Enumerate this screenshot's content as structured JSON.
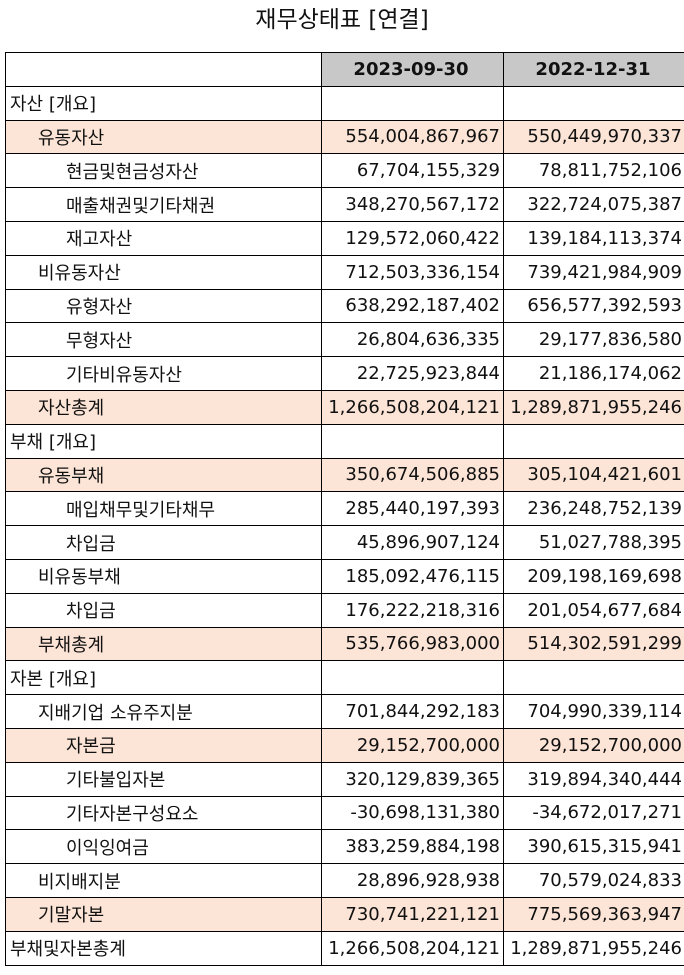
{
  "title": "재무상태표 [연결]",
  "columns": [
    "2023-09-30",
    "2022-12-31"
  ],
  "rows": [
    {
      "label": "자산 [개요]",
      "indent": 0,
      "hl": false,
      "v1": "",
      "v2": ""
    },
    {
      "label": "유동자산",
      "indent": 1,
      "hl": true,
      "v1": "554,004,867,967",
      "v2": "550,449,970,337"
    },
    {
      "label": "현금및현금성자산",
      "indent": 2,
      "hl": false,
      "v1": "67,704,155,329",
      "v2": "78,811,752,106"
    },
    {
      "label": "매출채권및기타채권",
      "indent": 2,
      "hl": false,
      "v1": "348,270,567,172",
      "v2": "322,724,075,387"
    },
    {
      "label": "재고자산",
      "indent": 2,
      "hl": false,
      "v1": "129,572,060,422",
      "v2": "139,184,113,374"
    },
    {
      "label": "비유동자산",
      "indent": 1,
      "hl": false,
      "v1": "712,503,336,154",
      "v2": "739,421,984,909"
    },
    {
      "label": "유형자산",
      "indent": 2,
      "hl": false,
      "v1": "638,292,187,402",
      "v2": "656,577,392,593"
    },
    {
      "label": "무형자산",
      "indent": 2,
      "hl": false,
      "v1": "26,804,636,335",
      "v2": "29,177,836,580"
    },
    {
      "label": "기타비유동자산",
      "indent": 2,
      "hl": false,
      "v1": "22,725,923,844",
      "v2": "21,186,174,062"
    },
    {
      "label": "자산총계",
      "indent": 1,
      "hl": true,
      "v1": "1,266,508,204,121",
      "v2": "1,289,871,955,246"
    },
    {
      "label": "부채 [개요]",
      "indent": 0,
      "hl": false,
      "v1": "",
      "v2": ""
    },
    {
      "label": "유동부채",
      "indent": 1,
      "hl": true,
      "v1": "350,674,506,885",
      "v2": "305,104,421,601"
    },
    {
      "label": "매입채무및기타채무",
      "indent": 2,
      "hl": false,
      "v1": "285,440,197,393",
      "v2": "236,248,752,139"
    },
    {
      "label": "차입금",
      "indent": 2,
      "hl": false,
      "v1": "45,896,907,124",
      "v2": "51,027,788,395"
    },
    {
      "label": "비유동부채",
      "indent": 1,
      "hl": false,
      "v1": "185,092,476,115",
      "v2": "209,198,169,698"
    },
    {
      "label": "차입금",
      "indent": 2,
      "hl": false,
      "v1": "176,222,218,316",
      "v2": "201,054,677,684"
    },
    {
      "label": "부채총계",
      "indent": 1,
      "hl": true,
      "v1": "535,766,983,000",
      "v2": "514,302,591,299"
    },
    {
      "label": "자본 [개요]",
      "indent": 0,
      "hl": false,
      "v1": "",
      "v2": ""
    },
    {
      "label": "지배기업 소유주지분",
      "indent": 1,
      "hl": false,
      "v1": "701,844,292,183",
      "v2": "704,990,339,114"
    },
    {
      "label": "자본금",
      "indent": 2,
      "hl": true,
      "v1": "29,152,700,000",
      "v2": "29,152,700,000"
    },
    {
      "label": "기타불입자본",
      "indent": 2,
      "hl": false,
      "v1": "320,129,839,365",
      "v2": "319,894,340,444"
    },
    {
      "label": "기타자본구성요소",
      "indent": 2,
      "hl": false,
      "v1": "-30,698,131,380",
      "v2": "-34,672,017,271"
    },
    {
      "label": "이익잉여금",
      "indent": 2,
      "hl": false,
      "v1": "383,259,884,198",
      "v2": "390,615,315,941"
    },
    {
      "label": "비지배지분",
      "indent": 1,
      "hl": false,
      "v1": "28,896,928,938",
      "v2": "70,579,024,833"
    },
    {
      "label": "기말자본",
      "indent": 1,
      "hl": true,
      "v1": "730,741,221,121",
      "v2": "775,569,363,947"
    },
    {
      "label": "부채및자본총계",
      "indent": 0,
      "hl": false,
      "v1": "1,266,508,204,121",
      "v2": "1,289,871,955,246"
    }
  ]
}
